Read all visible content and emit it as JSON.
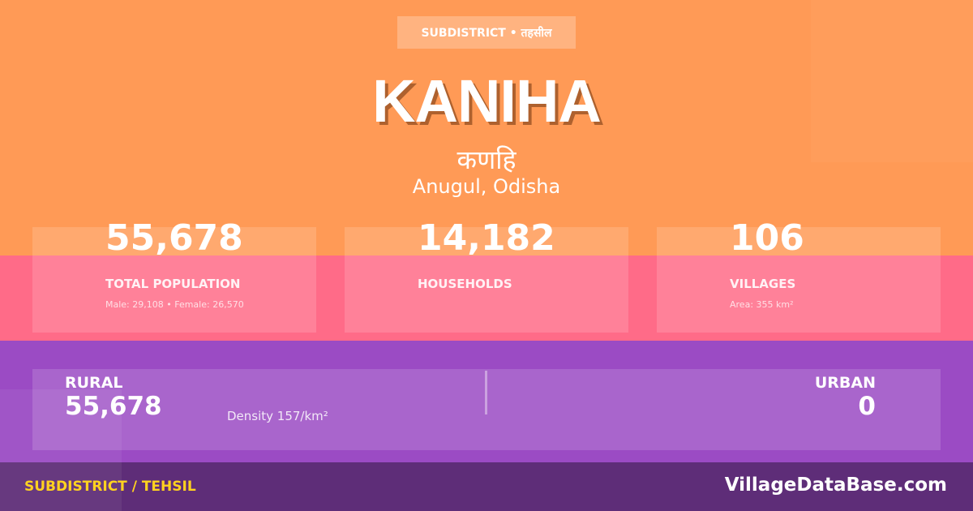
{
  "colors": {
    "orange": "#ff9a56",
    "pink": "#ff6b88",
    "purple": "#9b4bc4",
    "footer": "#5e2d78",
    "accent_yellow": "#ffd21f"
  },
  "header": {
    "badge": "SUBDISTRICT • तहसील",
    "title": "KANIHA",
    "title_hindi": "कणहि",
    "location": "Anugul, Odisha"
  },
  "stats": [
    {
      "value": "55,678",
      "label": "TOTAL POPULATION",
      "sub": "Male: 29,108 • Female: 26,570"
    },
    {
      "value": "14,182",
      "label": "HOUSEHOLDS",
      "sub": ""
    },
    {
      "value": "106",
      "label": "VILLAGES",
      "sub": "Area: 355 km²"
    }
  ],
  "split": {
    "rural_label": "RURAL",
    "rural_value": "55,678",
    "density": "Density 157/km²",
    "urban_label": "URBAN",
    "urban_value": "0"
  },
  "footer": {
    "left": "SUBDISTRICT / TEHSIL",
    "right": "VillageDataBase.com"
  }
}
